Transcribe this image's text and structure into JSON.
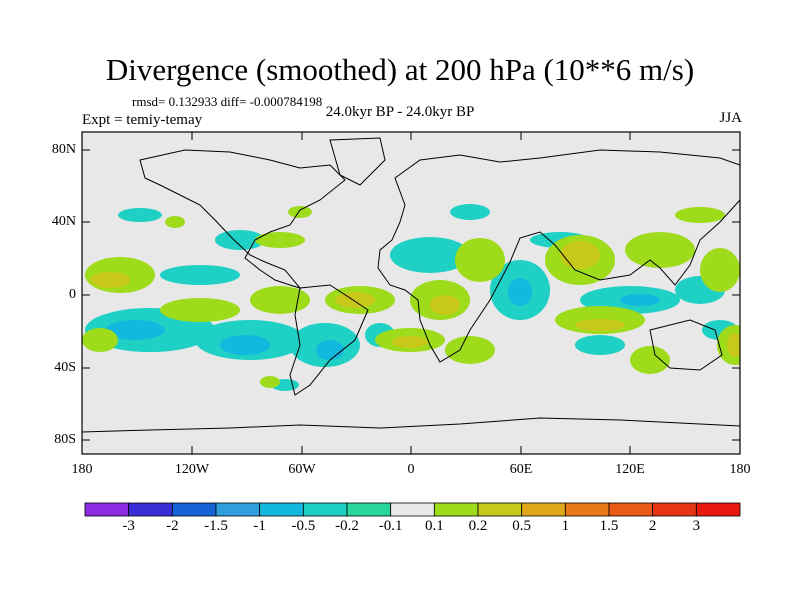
{
  "title": "Divergence (smoothed) at 200 hPa (10**6 m/s)",
  "stats": "rmsd= 0.132933  diff= -0.000784198",
  "expt": "Expt = temiy-temay",
  "period": "24.0kyr BP - 24.0kyr BP",
  "season": "JJA",
  "lat_labels": [
    "80N",
    "40N",
    "0",
    "40S",
    "80S"
  ],
  "lon_labels": [
    "180",
    "120W",
    "60W",
    "0",
    "60E",
    "120E",
    "180"
  ],
  "colorbar": {
    "labels": [
      "-3",
      "-2",
      "-1.5",
      "-1",
      "-0.5",
      "-0.2",
      "-0.1",
      "0.1",
      "0.2",
      "0.5",
      "1",
      "1.5",
      "2",
      "3"
    ],
    "colors": [
      "#8b2be2",
      "#3a2fd6",
      "#1663d8",
      "#2f9fe0",
      "#13b8de",
      "#1fd0c4",
      "#28d59a",
      "#e8e8e8",
      "#9edb1a",
      "#c8c81a",
      "#e0a818",
      "#ea7a18",
      "#e85a16",
      "#e53515",
      "#e81a10"
    ]
  },
  "colors": {
    "land_ocean_bg": "#e8e8e8",
    "coast": "#000000"
  }
}
